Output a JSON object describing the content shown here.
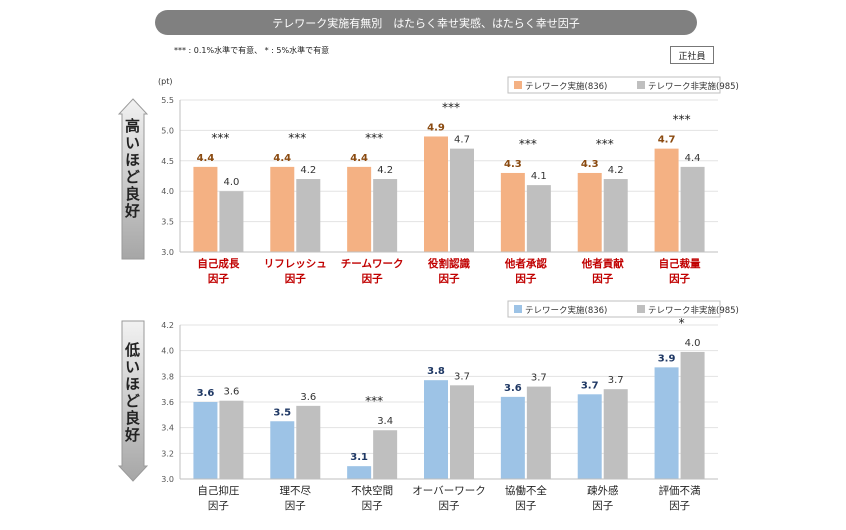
{
  "header": {
    "title": "テレワーク実施有無別　はたらく幸せ実感、はたらく幸せ因子",
    "significance_note": "*** : 0.1%水準で有意、 * : 5%水準で有意",
    "badge": "正社員"
  },
  "side_labels": {
    "top": "高いほど良好",
    "bottom": "低いほど良好"
  },
  "colors": {
    "top_implemented": "#f4b183",
    "bottom_implemented": "#9dc3e6",
    "not_implemented": "#bfbfbf",
    "top_category": "#c00000",
    "top_value": "#8a4a10",
    "bottom_value": "#1f3864"
  },
  "chart_data": [
    {
      "type": "bar",
      "unit": "(pt)",
      "ylim": [
        3.0,
        5.5
      ],
      "yticks": [
        "3.0",
        "3.5",
        "4.0",
        "4.5",
        "5.0",
        "5.5"
      ],
      "legend_position": "top-right",
      "categories": [
        [
          "自己成長",
          "因子"
        ],
        [
          "リフレッシュ",
          "因子"
        ],
        [
          "チームワーク",
          "因子"
        ],
        [
          "役割認識",
          "因子"
        ],
        [
          "他者承認",
          "因子"
        ],
        [
          "他者貢献",
          "因子"
        ],
        [
          "自己裁量",
          "因子"
        ]
      ],
      "series": [
        {
          "name": "テレワーク実施(836)",
          "values": [
            4.4,
            4.4,
            4.4,
            4.9,
            4.3,
            4.3,
            4.7
          ],
          "labels": [
            "4.4",
            "4.4",
            "4.4",
            "4.9",
            "4.3",
            "4.3",
            "4.7"
          ]
        },
        {
          "name": "テレワーク非実施(985)",
          "values": [
            4.0,
            4.2,
            4.2,
            4.7,
            4.1,
            4.2,
            4.4
          ],
          "labels": [
            "4.0",
            "4.2",
            "4.2",
            "4.7",
            "4.1",
            "4.2",
            "4.4"
          ]
        }
      ],
      "significance": [
        "***",
        "***",
        "***",
        "***",
        "***",
        "***",
        "***"
      ]
    },
    {
      "type": "bar",
      "ylim": [
        3.0,
        4.2
      ],
      "yticks": [
        "3.0",
        "3.2",
        "3.4",
        "3.6",
        "3.8",
        "4.0",
        "4.2"
      ],
      "legend_position": "top-right",
      "categories": [
        [
          "自己抑圧",
          "因子"
        ],
        [
          "理不尽",
          "因子"
        ],
        [
          "不快空間",
          "因子"
        ],
        [
          "オーバーワーク",
          "因子"
        ],
        [
          "協働不全",
          "因子"
        ],
        [
          "疎外感",
          "因子"
        ],
        [
          "評価不満",
          "因子"
        ]
      ],
      "series": [
        {
          "name": "テレワーク実施(836)",
          "values": [
            3.6,
            3.45,
            3.1,
            3.77,
            3.64,
            3.66,
            3.87
          ],
          "labels": [
            "3.6",
            "3.5",
            "3.1",
            "3.8",
            "3.6",
            "3.7",
            "3.9"
          ]
        },
        {
          "name": "テレワーク非実施(985)",
          "values": [
            3.61,
            3.57,
            3.38,
            3.73,
            3.72,
            3.7,
            3.99
          ],
          "labels": [
            "3.6",
            "3.6",
            "3.4",
            "3.7",
            "3.7",
            "3.7",
            "4.0"
          ]
        }
      ],
      "significance": [
        "",
        "",
        "***",
        "",
        "",
        "",
        "*"
      ]
    }
  ]
}
